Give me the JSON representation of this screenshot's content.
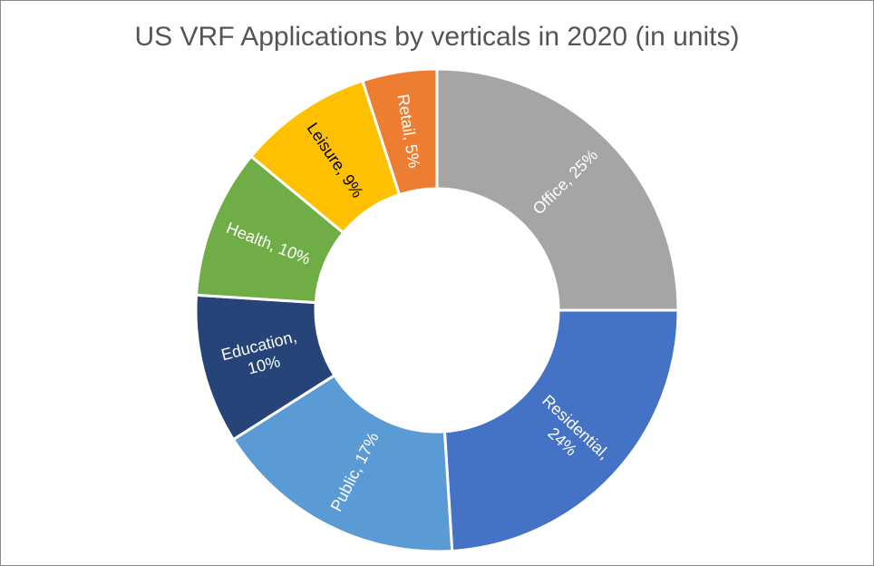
{
  "chart_data": {
    "type": "donut",
    "title": "US VRF Applications by verticals in 2020 (in units)",
    "unit": "%",
    "slices": [
      {
        "category": "Office",
        "value": 25,
        "color": "#A5A5A5",
        "label_lines": [
          "Office, 25%"
        ],
        "label_color": "#ffffff"
      },
      {
        "category": "Residential",
        "value": 24,
        "color": "#4472C4",
        "label_lines": [
          "Residential,",
          "24%"
        ],
        "label_color": "#ffffff"
      },
      {
        "category": "Public",
        "value": 17,
        "color": "#5B9BD5",
        "label_lines": [
          "Public, 17%"
        ],
        "label_color": "#ffffff"
      },
      {
        "category": "Education",
        "value": 10,
        "color": "#264478",
        "label_lines": [
          "Education,",
          "10%"
        ],
        "label_color": "#ffffff"
      },
      {
        "category": "Health",
        "value": 10,
        "color": "#70AD47",
        "label_lines": [
          "Health, 10%"
        ],
        "label_color": "#ffffff"
      },
      {
        "category": "Leisure",
        "value": 9,
        "color": "#FFC000",
        "label_lines": [
          "Leisure, 9%"
        ],
        "label_color": "#000000"
      },
      {
        "category": "Retail",
        "value": 5,
        "color": "#ED7D31",
        "label_lines": [
          "Retail, 5%"
        ],
        "label_color": "#ffffff"
      }
    ]
  }
}
